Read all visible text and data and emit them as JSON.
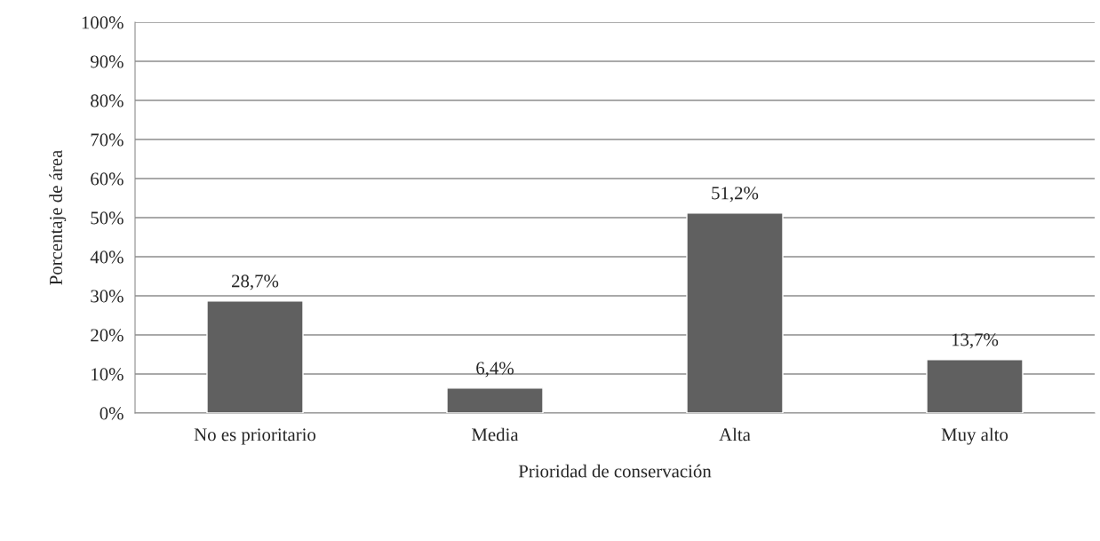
{
  "chart_data": {
    "type": "bar",
    "xlabel": "Prioridad de conservación",
    "ylabel": "Porcentaje de área",
    "categories": [
      "No es prioritario",
      "Media",
      "Alta",
      "Muy alto"
    ],
    "values": [
      28.7,
      6.4,
      51.2,
      13.7
    ],
    "color": "#606060",
    "value_labels": [
      "28,7%",
      "6,4%",
      "51,2%",
      "13,7%"
    ],
    "ylim": [
      0,
      100
    ],
    "yticks": [
      {
        "value": 0,
        "label": "0%"
      },
      {
        "value": 10,
        "label": "10%"
      },
      {
        "value": 20,
        "label": "20%"
      },
      {
        "value": 30,
        "label": "30%"
      },
      {
        "value": 40,
        "label": "40%"
      },
      {
        "value": 50,
        "label": "50%"
      },
      {
        "value": 60,
        "label": "60%"
      },
      {
        "value": 70,
        "label": "70%"
      },
      {
        "value": 80,
        "label": "80%"
      },
      {
        "value": 90,
        "label": "90%"
      },
      {
        "value": 100,
        "label": "100%"
      }
    ],
    "grid": "y",
    "legend": false
  }
}
